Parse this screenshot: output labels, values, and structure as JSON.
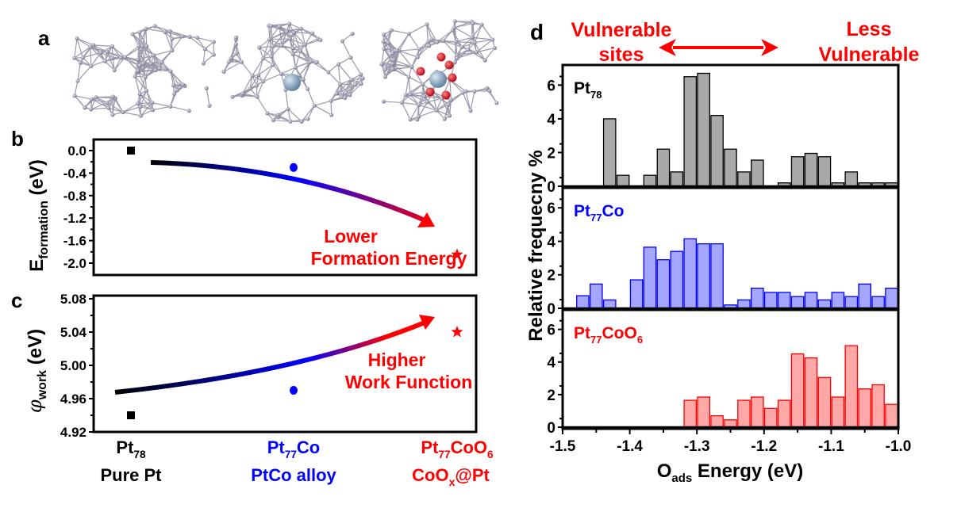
{
  "panel_letters": {
    "a": "a",
    "b": "b",
    "c": "c",
    "d": "d"
  },
  "colors": {
    "pt78": "#000000",
    "pt77co": "#0000ff",
    "pt77coo6": "#ff0000",
    "hist_pt78": "#a9a9a9",
    "hist_pt77co": "#a4a6ff",
    "hist_pt77coo6": "#ffa8a8",
    "structure_pt": "#9a9aab",
    "structure_co": "#7a9ab8",
    "structure_o": "#d01020"
  },
  "categories": [
    {
      "line1": {
        "base": "Pt",
        "sub": "78",
        "tail": "",
        "sub2": ""
      },
      "line2": "Pure Pt",
      "color": "#000000"
    },
    {
      "line1": {
        "base": "Pt",
        "sub": "77",
        "tail": "Co",
        "sub2": ""
      },
      "line2": "PtCo alloy",
      "color": "#0000ff"
    },
    {
      "line1": {
        "base": "Pt",
        "sub": "77",
        "tail": "CoO",
        "sub2": "6"
      },
      "line2_base": "CoO",
      "line2_sub": "x",
      "line2_tail": "@Pt",
      "line2": "",
      "color": "#ff0000"
    }
  ],
  "chart_data": [
    {
      "panel": "b",
      "type": "scatter",
      "ylabel": {
        "base": "E",
        "sub": "formation",
        "tail": " (eV)"
      },
      "ylim": [
        -2.18,
        0.21
      ],
      "yticks": [
        "0.0",
        "-0.4",
        "-0.8",
        "-1.2",
        "-1.6",
        "-2.0"
      ],
      "points": [
        {
          "category": "Pt78",
          "value": 0.0,
          "marker": "square",
          "color": "#000000"
        },
        {
          "category": "Pt77Co",
          "value": -0.3,
          "marker": "circle",
          "color": "#0000ff"
        },
        {
          "category": "Pt77CoO6",
          "value": -1.85,
          "marker": "star",
          "color": "#ff0000"
        }
      ],
      "annotation": [
        "Lower",
        "Formation Energy"
      ],
      "grid": false
    },
    {
      "panel": "c",
      "type": "scatter",
      "ylabel": {
        "base": "φ",
        "sub": "work",
        "tail": " (eV)"
      },
      "ylim": [
        4.92,
        5.08
      ],
      "yticks": [
        "5.08",
        "5.04",
        "5.00",
        "4.96",
        "4.92"
      ],
      "points": [
        {
          "category": "Pt78",
          "value": 4.94,
          "marker": "square",
          "color": "#000000"
        },
        {
          "category": "Pt77Co",
          "value": 4.97,
          "marker": "circle",
          "color": "#0000ff"
        },
        {
          "category": "Pt77CoO6",
          "value": 5.04,
          "marker": "star",
          "color": "#ff0000"
        }
      ],
      "annotation": [
        "Higher",
        "Work Function"
      ],
      "grid": false
    },
    {
      "panel": "d",
      "type": "bar",
      "header": {
        "left": [
          "Vulnerable",
          "sites"
        ],
        "right": [
          "Less",
          "Vulnerable"
        ]
      },
      "xlabel": {
        "base": "O",
        "sub": "ads",
        "tail": " Energy (eV)"
      },
      "ylabel": "Relative frequecny %",
      "xlim": [
        -1.5,
        -1.0
      ],
      "ylim": [
        0,
        7.1
      ],
      "xticks": [
        "-1.5",
        "-1.4",
        "-1.3",
        "-1.2",
        "-1.1",
        "-1.0"
      ],
      "yticks": [
        "0",
        "2",
        "4",
        "6"
      ],
      "bin_width": 0.02,
      "bin_start": -1.5,
      "series": [
        {
          "name": {
            "base": "Pt",
            "sub": "78",
            "tail": "",
            "sub2": ""
          },
          "color": "#a9a9a9",
          "edge": "#000000",
          "values": [
            0,
            0,
            0,
            4.0,
            0.65,
            0,
            0.65,
            2.2,
            0.85,
            6.5,
            6.7,
            4.2,
            2.2,
            0.85,
            1.55,
            0,
            0.2,
            1.75,
            1.95,
            1.75,
            0.2,
            0.85,
            0.2,
            0.2,
            0.2
          ]
        },
        {
          "name": {
            "base": "Pt",
            "sub": "77",
            "tail": "Co",
            "sub2": ""
          },
          "color": "#a4a6ff",
          "edge": "#0000ff",
          "values": [
            0,
            0.75,
            1.45,
            0.5,
            0,
            1.7,
            3.65,
            2.9,
            3.4,
            4.15,
            3.85,
            3.85,
            0.2,
            0.5,
            1.2,
            0.95,
            0.95,
            0.7,
            0.95,
            0.5,
            0.95,
            0.7,
            1.45,
            0.7,
            1.2
          ]
        },
        {
          "name": {
            "base": "Pt",
            "sub": "77",
            "tail": "CoO",
            "sub2": "6"
          },
          "color": "#ffa8a8",
          "edge": "#ff0000",
          "values": [
            0,
            0,
            0,
            0,
            0,
            0,
            0,
            0,
            0,
            1.65,
            1.85,
            0.7,
            0.45,
            1.65,
            1.85,
            1.15,
            1.65,
            4.5,
            4.25,
            3.05,
            1.85,
            5.0,
            2.35,
            2.6,
            1.4
          ]
        }
      ]
    }
  ]
}
